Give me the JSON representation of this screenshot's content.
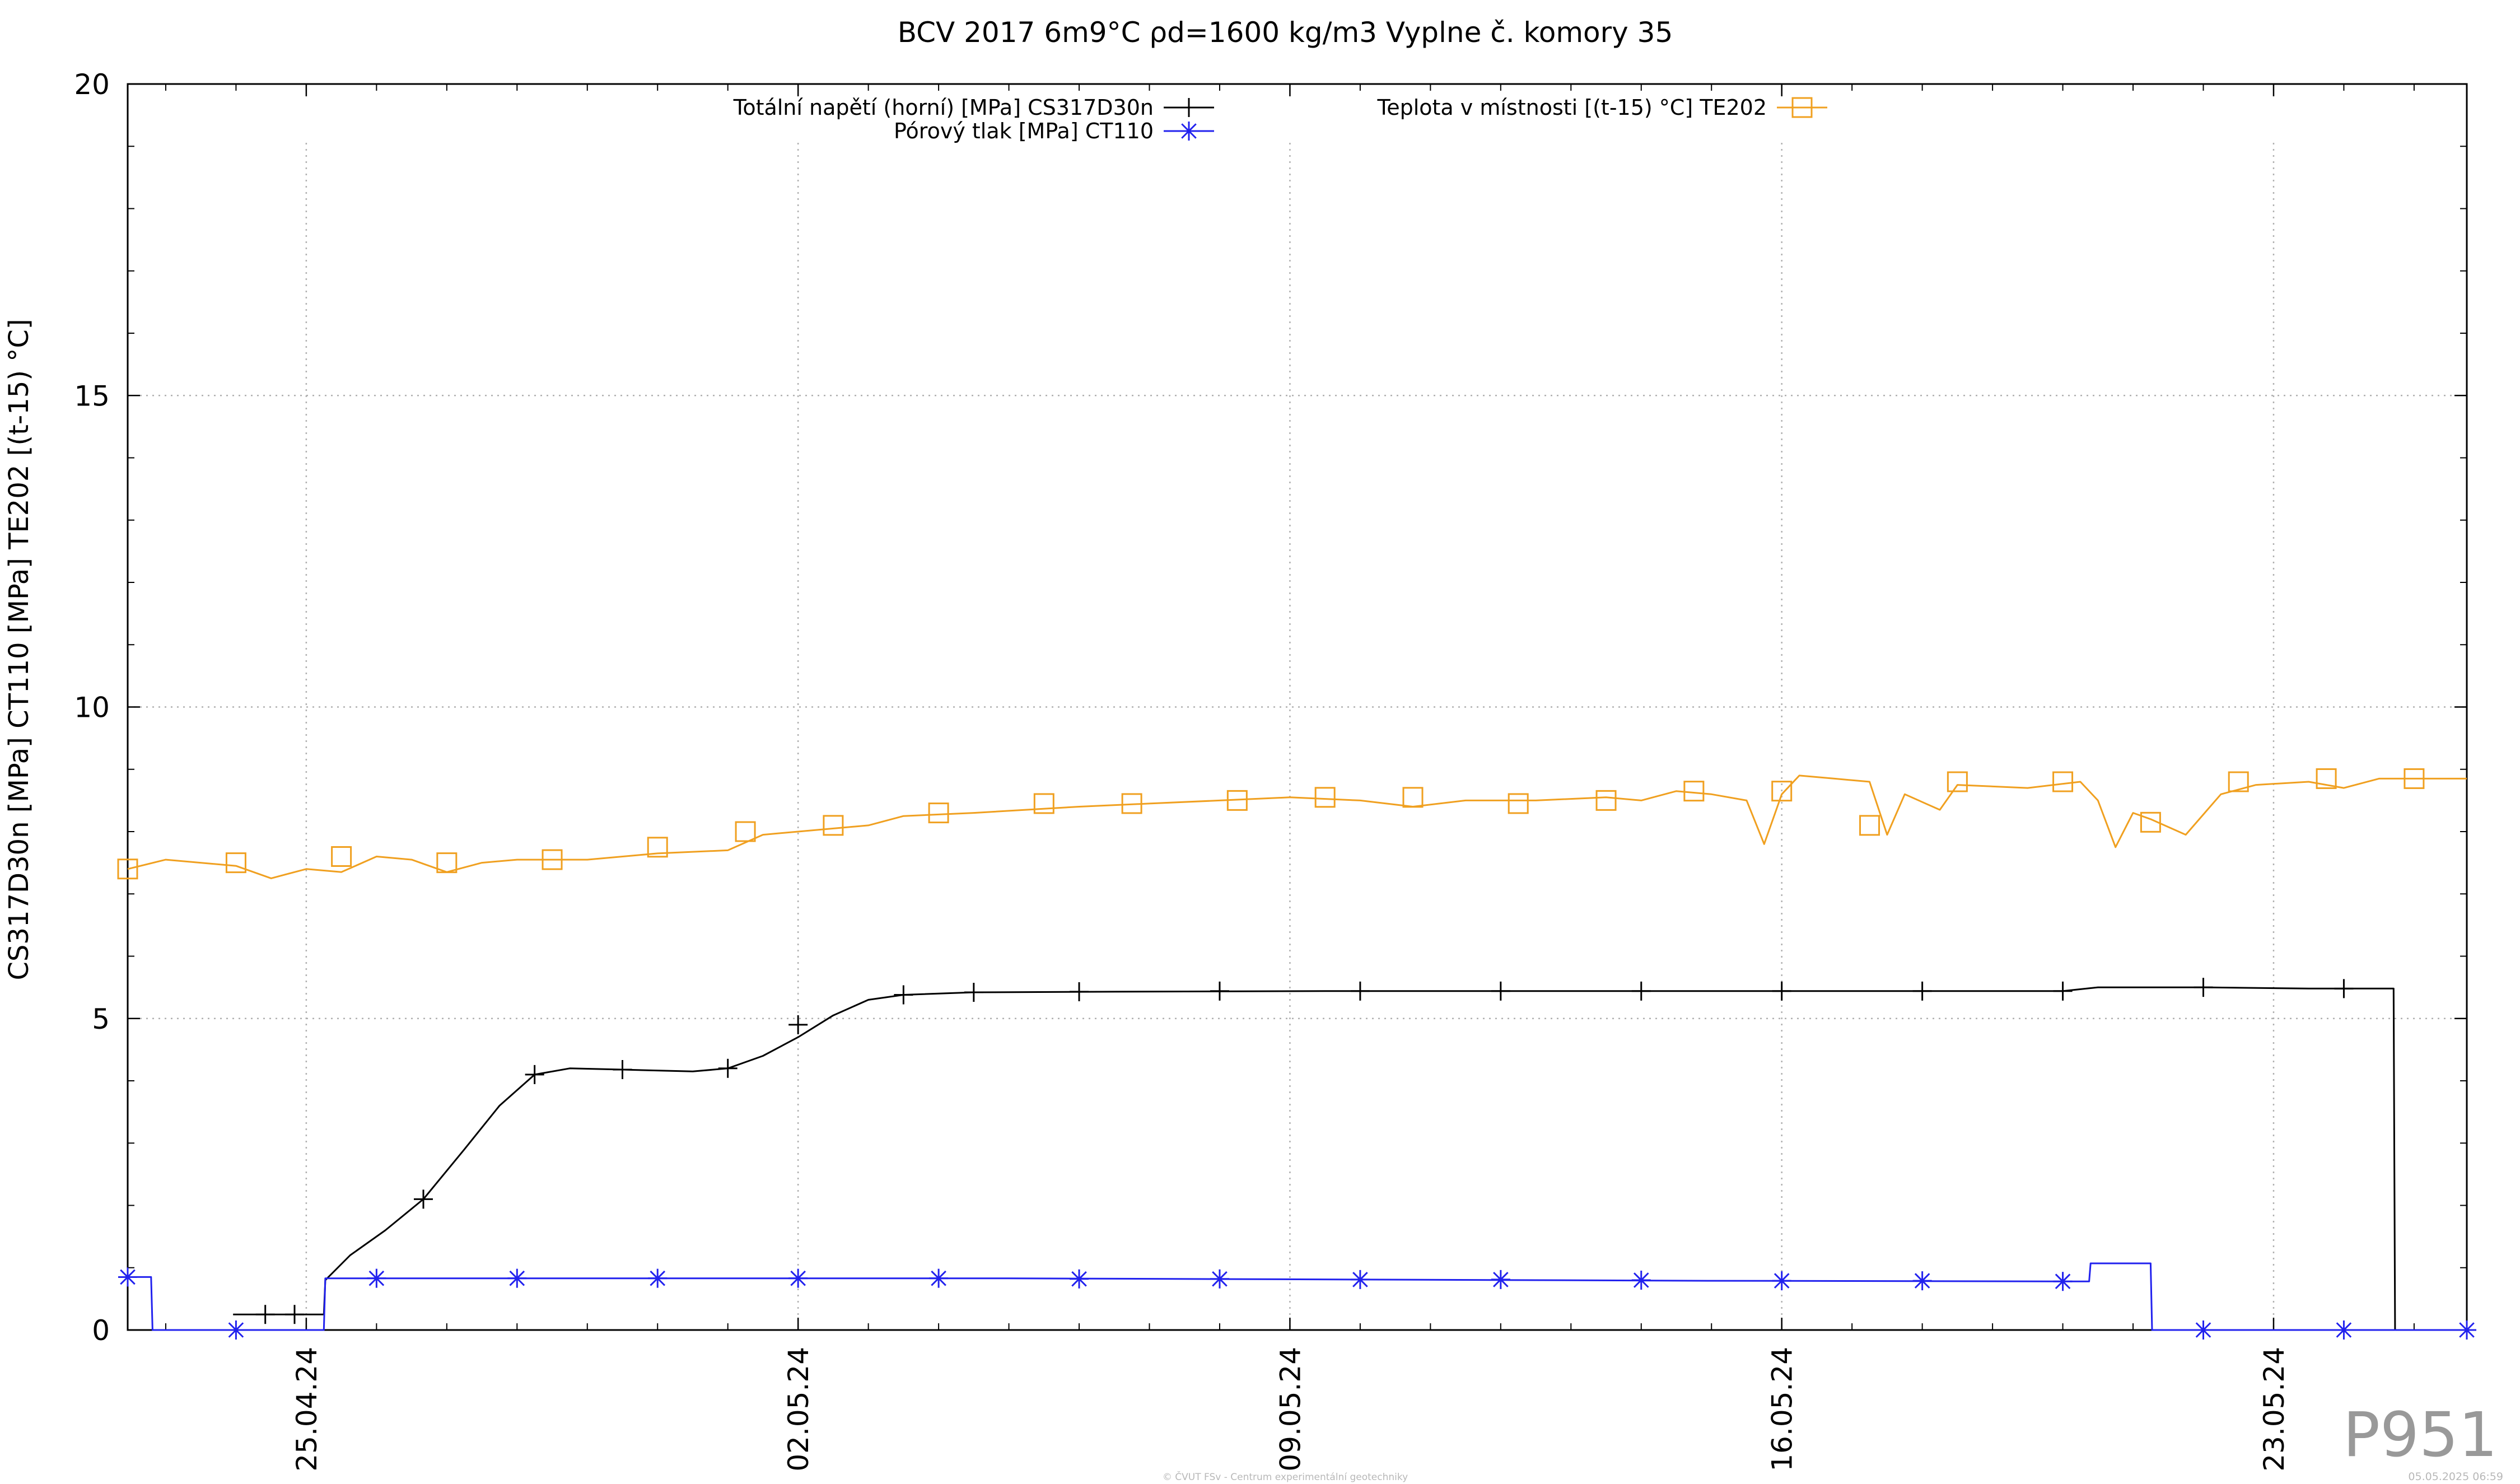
{
  "chart_data": {
    "type": "line",
    "title": "BCV 2017 6m9°C ρd=1600 kg/m3 Vyplne č. komory 35",
    "ylabel": "CS317D30n [MPa] CT110 [MPa] TE202 [(t-15) °C]",
    "xlabel": "",
    "ylim": [
      0,
      20
    ],
    "xlim": [
      "2024-04-22T11:00",
      "2024-05-25T18:00"
    ],
    "yticks": [
      0,
      5,
      10,
      15,
      20
    ],
    "xticks": [
      {
        "label": "25.04.24",
        "date": "2024-04-25T00:00"
      },
      {
        "label": "02.05.24",
        "date": "2024-05-02T00:00"
      },
      {
        "label": "09.05.24",
        "date": "2024-05-09T00:00"
      },
      {
        "label": "16.05.24",
        "date": "2024-05-16T00:00"
      },
      {
        "label": "23.05.24",
        "date": "2024-05-23T00:00"
      }
    ],
    "grid": true,
    "legend_position": "top",
    "series": [
      {
        "name": "Totální napětí (horní) [MPa] CS317D30n",
        "color": "#000000",
        "marker": "plus",
        "legend_column": "left",
        "points": [
          [
            "2024-04-23T23:00",
            0.25
          ],
          [
            "2024-04-24T10:00",
            0.25
          ],
          [
            "2024-04-24T20:00",
            0.25
          ],
          [
            "2024-04-25T06:00",
            0.25
          ],
          [
            "2024-04-25T06:30",
            0.8
          ],
          [
            "2024-04-25T15:00",
            1.2
          ],
          [
            "2024-04-26T03:00",
            1.6
          ],
          [
            "2024-04-26T16:00",
            2.1
          ],
          [
            "2024-04-27T06:00",
            2.9
          ],
          [
            "2024-04-27T18:00",
            3.6
          ],
          [
            "2024-04-28T06:00",
            4.1
          ],
          [
            "2024-04-28T18:00",
            4.2
          ],
          [
            "2024-04-29T12:00",
            4.18
          ],
          [
            "2024-04-30T12:00",
            4.15
          ],
          [
            "2024-05-01T00:00",
            4.2
          ],
          [
            "2024-05-01T12:00",
            4.4
          ],
          [
            "2024-05-02T00:00",
            4.7
          ],
          [
            "2024-05-02T12:00",
            5.05
          ],
          [
            "2024-05-03T00:00",
            5.3
          ],
          [
            "2024-05-03T12:00",
            5.38
          ],
          [
            "2024-05-04T12:00",
            5.42
          ],
          [
            "2024-05-06T12:00",
            5.43
          ],
          [
            "2024-05-09T12:00",
            5.44
          ],
          [
            "2024-05-12T12:00",
            5.44
          ],
          [
            "2024-05-15T12:00",
            5.44
          ],
          [
            "2024-05-18T12:00",
            5.44
          ],
          [
            "2024-05-20T00:00",
            5.44
          ],
          [
            "2024-05-20T12:00",
            5.5
          ],
          [
            "2024-05-22T00:00",
            5.5
          ],
          [
            "2024-05-23T12:00",
            5.48
          ],
          [
            "2024-05-24T17:00",
            5.48
          ],
          [
            "2024-05-24T17:30",
            0.0
          ],
          [
            "2024-05-25T18:00",
            0.0
          ]
        ],
        "markers": [
          [
            "2024-04-24T10:00",
            0.25
          ],
          [
            "2024-04-24T20:00",
            0.25
          ],
          [
            "2024-04-26T16:00",
            2.1
          ],
          [
            "2024-04-28T06:00",
            4.1
          ],
          [
            "2024-04-29T12:00",
            4.18
          ],
          [
            "2024-05-01T00:00",
            4.2
          ],
          [
            "2024-05-02T00:00",
            4.9
          ],
          [
            "2024-05-03T12:00",
            5.38
          ],
          [
            "2024-05-04T12:00",
            5.42
          ],
          [
            "2024-05-06T00:00",
            5.43
          ],
          [
            "2024-05-08T00:00",
            5.44
          ],
          [
            "2024-05-10T00:00",
            5.44
          ],
          [
            "2024-05-12T00:00",
            5.44
          ],
          [
            "2024-05-14T00:00",
            5.44
          ],
          [
            "2024-05-16T00:00",
            5.44
          ],
          [
            "2024-05-18T00:00",
            5.44
          ],
          [
            "2024-05-20T00:00",
            5.44
          ],
          [
            "2024-05-22T00:00",
            5.5
          ],
          [
            "2024-05-24T00:00",
            5.48
          ]
        ]
      },
      {
        "name": "Pórový tlak [MPa] CT110",
        "color": "#2222ee",
        "marker": "star",
        "legend_column": "left",
        "points": [
          [
            "2024-04-22T11:00",
            0.85
          ],
          [
            "2024-04-22T19:00",
            0.85
          ],
          [
            "2024-04-22T19:30",
            0.0
          ],
          [
            "2024-04-25T06:00",
            0.0
          ],
          [
            "2024-04-25T06:30",
            0.83
          ],
          [
            "2024-05-05T00:00",
            0.83
          ],
          [
            "2024-05-10T00:00",
            0.81
          ],
          [
            "2024-05-15T00:00",
            0.79
          ],
          [
            "2024-05-20T00:00",
            0.78
          ],
          [
            "2024-05-20T09:00",
            0.78
          ],
          [
            "2024-05-20T09:30",
            1.07
          ],
          [
            "2024-05-21T06:00",
            1.07
          ],
          [
            "2024-05-21T06:30",
            0.0
          ],
          [
            "2024-05-25T18:00",
            0.0
          ]
        ],
        "markers": [
          [
            "2024-04-22T11:00",
            0.85
          ],
          [
            "2024-04-24T00:00",
            0.0
          ],
          [
            "2024-04-26T00:00",
            0.83
          ],
          [
            "2024-04-28T00:00",
            0.83
          ],
          [
            "2024-04-30T00:00",
            0.83
          ],
          [
            "2024-05-02T00:00",
            0.83
          ],
          [
            "2024-05-04T00:00",
            0.83
          ],
          [
            "2024-05-06T00:00",
            0.82
          ],
          [
            "2024-05-08T00:00",
            0.82
          ],
          [
            "2024-05-10T00:00",
            0.81
          ],
          [
            "2024-05-12T00:00",
            0.81
          ],
          [
            "2024-05-14T00:00",
            0.8
          ],
          [
            "2024-05-16T00:00",
            0.79
          ],
          [
            "2024-05-18T00:00",
            0.79
          ],
          [
            "2024-05-20T00:00",
            0.78
          ],
          [
            "2024-05-22T00:00",
            0.0
          ],
          [
            "2024-05-24T00:00",
            0.0
          ],
          [
            "2024-05-25T18:00",
            0.0
          ]
        ]
      },
      {
        "name": "Teplota v místnosti [(t-15) °C] TE202",
        "color": "#f0a020",
        "marker": "square",
        "legend_column": "right",
        "points": [
          [
            "2024-04-22T11:00",
            7.4
          ],
          [
            "2024-04-23T00:00",
            7.55
          ],
          [
            "2024-04-24T00:00",
            7.45
          ],
          [
            "2024-04-24T12:00",
            7.25
          ],
          [
            "2024-04-25T00:00",
            7.4
          ],
          [
            "2024-04-25T12:00",
            7.35
          ],
          [
            "2024-04-26T00:00",
            7.6
          ],
          [
            "2024-04-26T12:00",
            7.55
          ],
          [
            "2024-04-27T00:00",
            7.35
          ],
          [
            "2024-04-27T12:00",
            7.5
          ],
          [
            "2024-04-28T00:00",
            7.55
          ],
          [
            "2024-04-29T00:00",
            7.55
          ],
          [
            "2024-04-30T00:00",
            7.65
          ],
          [
            "2024-05-01T00:00",
            7.7
          ],
          [
            "2024-05-01T12:00",
            7.95
          ],
          [
            "2024-05-02T00:00",
            8.0
          ],
          [
            "2024-05-03T00:00",
            8.1
          ],
          [
            "2024-05-03T12:00",
            8.25
          ],
          [
            "2024-05-04T12:00",
            8.3
          ],
          [
            "2024-05-06T00:00",
            8.4
          ],
          [
            "2024-05-07T00:00",
            8.45
          ],
          [
            "2024-05-08T00:00",
            8.5
          ],
          [
            "2024-05-09T00:00",
            8.55
          ],
          [
            "2024-05-10T00:00",
            8.5
          ],
          [
            "2024-05-10T18:00",
            8.4
          ],
          [
            "2024-05-11T12:00",
            8.5
          ],
          [
            "2024-05-12T12:00",
            8.5
          ],
          [
            "2024-05-13T12:00",
            8.55
          ],
          [
            "2024-05-14T00:00",
            8.5
          ],
          [
            "2024-05-14T12:00",
            8.65
          ],
          [
            "2024-05-15T00:00",
            8.6
          ],
          [
            "2024-05-15T12:00",
            8.5
          ],
          [
            "2024-05-15T18:00",
            7.8
          ],
          [
            "2024-05-16T00:00",
            8.6
          ],
          [
            "2024-05-16T06:00",
            8.9
          ],
          [
            "2024-05-16T18:00",
            8.85
          ],
          [
            "2024-05-17T06:00",
            8.8
          ],
          [
            "2024-05-17T12:00",
            7.95
          ],
          [
            "2024-05-17T18:00",
            8.6
          ],
          [
            "2024-05-18T06:00",
            8.35
          ],
          [
            "2024-05-18T12:00",
            8.75
          ],
          [
            "2024-05-19T12:00",
            8.7
          ],
          [
            "2024-05-20T06:00",
            8.8
          ],
          [
            "2024-05-20T12:00",
            8.5
          ],
          [
            "2024-05-20T18:00",
            7.75
          ],
          [
            "2024-05-21T00:00",
            8.3
          ],
          [
            "2024-05-21T06:00",
            8.2
          ],
          [
            "2024-05-21T18:00",
            7.95
          ],
          [
            "2024-05-22T06:00",
            8.6
          ],
          [
            "2024-05-22T18:00",
            8.75
          ],
          [
            "2024-05-23T12:00",
            8.8
          ],
          [
            "2024-05-24T00:00",
            8.7
          ],
          [
            "2024-05-24T12:00",
            8.85
          ],
          [
            "2024-05-25T18:00",
            8.85
          ]
        ],
        "markers": [
          [
            "2024-04-22T11:00",
            7.4
          ],
          [
            "2024-04-24T00:00",
            7.5
          ],
          [
            "2024-04-25T12:00",
            7.6
          ],
          [
            "2024-04-27T00:00",
            7.5
          ],
          [
            "2024-04-28T12:00",
            7.55
          ],
          [
            "2024-04-30T00:00",
            7.75
          ],
          [
            "2024-05-01T06:00",
            8.0
          ],
          [
            "2024-05-02T12:00",
            8.1
          ],
          [
            "2024-05-04T00:00",
            8.3
          ],
          [
            "2024-05-05T12:00",
            8.45
          ],
          [
            "2024-05-06T18:00",
            8.45
          ],
          [
            "2024-05-08T06:00",
            8.5
          ],
          [
            "2024-05-09T12:00",
            8.55
          ],
          [
            "2024-05-10T18:00",
            8.55
          ],
          [
            "2024-05-12T06:00",
            8.45
          ],
          [
            "2024-05-13T12:00",
            8.5
          ],
          [
            "2024-05-14T18:00",
            8.65
          ],
          [
            "2024-05-16T00:00",
            8.65
          ],
          [
            "2024-05-17T06:00",
            8.1
          ],
          [
            "2024-05-18T12:00",
            8.8
          ],
          [
            "2024-05-20T00:00",
            8.8
          ],
          [
            "2024-05-21T06:00",
            8.15
          ],
          [
            "2024-05-22T12:00",
            8.8
          ],
          [
            "2024-05-23T18:00",
            8.85
          ],
          [
            "2024-05-25T00:00",
            8.85
          ]
        ]
      }
    ]
  },
  "watermark": "P951",
  "footer_credit": "© ČVUT FSv - Centrum experimentální geotechniky",
  "footer_date": "05.05.2025 06:59"
}
